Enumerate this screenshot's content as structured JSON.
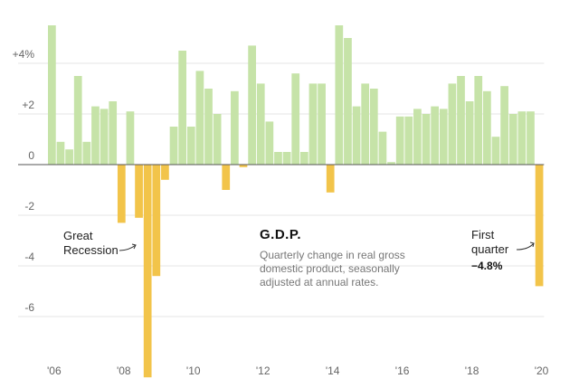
{
  "chart_data": {
    "type": "bar",
    "title": "G.D.P.",
    "subtitle_lines": [
      "Quarterly change in real gross",
      "domestic product, seasonally",
      "adjusted at annual rates."
    ],
    "positive_color": "#c6e3a8",
    "negative_color": "#f2c44a",
    "ylim": [
      -8.4,
      5.8
    ],
    "y_ticks": [
      {
        "value": 4,
        "label": "+4%"
      },
      {
        "value": 2,
        "label": "+2"
      },
      {
        "value": 0,
        "label": "0"
      },
      {
        "value": -2,
        "label": "-2"
      },
      {
        "value": -4,
        "label": "-4"
      },
      {
        "value": -6,
        "label": "-6"
      }
    ],
    "x_ticks": [
      {
        "index": 0,
        "label": "'06"
      },
      {
        "index": 8,
        "label": "'08"
      },
      {
        "index": 16,
        "label": "'10"
      },
      {
        "index": 24,
        "label": "'12"
      },
      {
        "index": 32,
        "label": "'14"
      },
      {
        "index": 40,
        "label": "'16"
      },
      {
        "index": 48,
        "label": "'18"
      },
      {
        "index": 56,
        "label": "'20"
      }
    ],
    "values": [
      5.5,
      0.9,
      0.6,
      3.5,
      0.9,
      2.3,
      2.2,
      2.5,
      -2.3,
      2.1,
      -2.1,
      -8.4,
      -4.4,
      -0.6,
      1.5,
      4.5,
      1.5,
      3.7,
      3.0,
      2.0,
      -1.0,
      2.9,
      -0.1,
      4.7,
      3.2,
      1.7,
      0.5,
      0.5,
      3.6,
      0.5,
      3.2,
      3.2,
      -1.1,
      5.5,
      5.0,
      2.3,
      3.2,
      3.0,
      1.3,
      0.1,
      1.9,
      1.9,
      2.2,
      2.0,
      2.3,
      2.2,
      3.2,
      3.5,
      2.5,
      3.5,
      2.9,
      1.1,
      3.1,
      2.0,
      2.1,
      2.1,
      -4.8
    ],
    "annotations": {
      "recession": [
        "Great",
        "Recession"
      ],
      "first_quarter": [
        "First",
        "quarter"
      ],
      "first_quarter_value": "−4.8%"
    }
  }
}
